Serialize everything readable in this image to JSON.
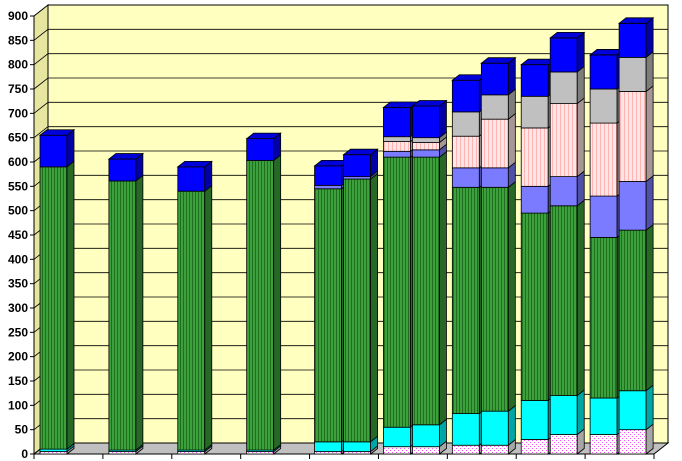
{
  "chart_data": {
    "type": "bar",
    "stacked": true,
    "three_d": true,
    "title": "",
    "xlabel": "",
    "ylabel": "",
    "ylim": [
      0,
      900
    ],
    "yticks": [
      0,
      50,
      100,
      150,
      200,
      250,
      300,
      350,
      400,
      450,
      500,
      550,
      600,
      650,
      700,
      750,
      800,
      850,
      900
    ],
    "grid": true,
    "legend": "none",
    "wall_color": "#ffffc0",
    "floor_color": "#c0c0c0",
    "groups": [
      {
        "bars": 1
      },
      {
        "bars": 1
      },
      {
        "bars": 1
      },
      {
        "bars": 1
      },
      {
        "bars": 2
      },
      {
        "bars": 2
      },
      {
        "bars": 2
      },
      {
        "bars": 2
      },
      {
        "bars": 2
      }
    ],
    "series": [
      {
        "color": "#ffffff",
        "pattern": "dots",
        "values": [
          5,
          5,
          5,
          5,
          5,
          5,
          15,
          15,
          18,
          18,
          30,
          40,
          40,
          50
        ]
      },
      {
        "color": "#00ffff",
        "pattern": "solid",
        "values": [
          5,
          3,
          3,
          3,
          20,
          20,
          40,
          45,
          65,
          70,
          80,
          80,
          75,
          80
        ]
      },
      {
        "color": "#3ca03c",
        "pattern": "lines",
        "values": [
          580,
          553,
          532,
          595,
          520,
          540,
          555,
          550,
          465,
          460,
          385,
          390,
          330,
          330
        ]
      },
      {
        "color": "#7b7bff",
        "pattern": "solid",
        "values": [
          0,
          0,
          0,
          0,
          7,
          5,
          12,
          15,
          40,
          40,
          55,
          60,
          85,
          100
        ]
      },
      {
        "color": "#ffe6e6",
        "pattern": "lines",
        "values": [
          0,
          0,
          0,
          0,
          0,
          0,
          20,
          15,
          65,
          100,
          120,
          150,
          150,
          185
        ]
      },
      {
        "color": "#c0c0c0",
        "pattern": "solid",
        "values": [
          0,
          0,
          0,
          0,
          0,
          0,
          10,
          10,
          50,
          50,
          65,
          65,
          70,
          70
        ]
      },
      {
        "color": "#0000ff",
        "pattern": "solid",
        "values": [
          65,
          45,
          50,
          45,
          40,
          45,
          60,
          65,
          65,
          65,
          65,
          70,
          70,
          70
        ]
      }
    ]
  }
}
